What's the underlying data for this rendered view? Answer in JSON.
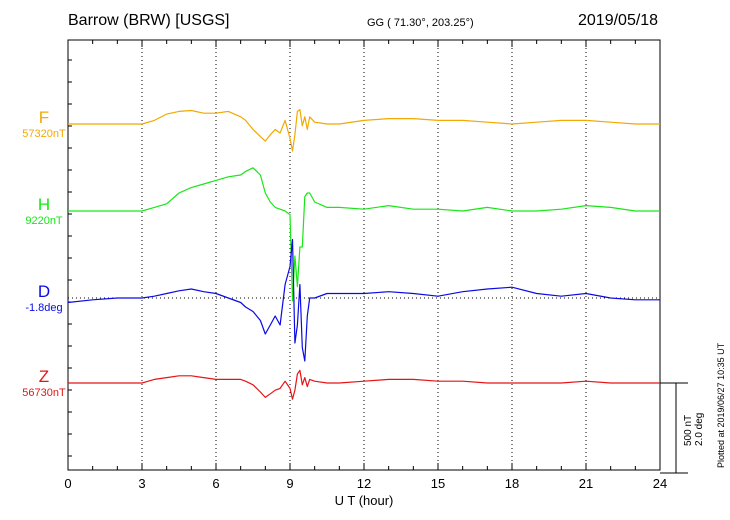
{
  "header": {
    "station": "Barrow (BRW)  [USGS]",
    "coords": "GG ( 71.30°, 203.25°)",
    "date": "2019/05/18"
  },
  "side_note": "Plotted at 2019/06/27 10:35 UT",
  "scale_bar": {
    "line1": "500 nT",
    "line2": "2.0 deg"
  },
  "colors": {
    "F": "#f2a900",
    "H": "#19e619",
    "D": "#0a0ae6",
    "Z": "#e61414",
    "axis": "#000000"
  },
  "chart_data": {
    "type": "line",
    "title": "Barrow (BRW)  [USGS]",
    "xlabel": "U T (hour)",
    "xlim": [
      0,
      24
    ],
    "xticks": [
      "0",
      "3",
      "6",
      "9",
      "12",
      "15",
      "18",
      "21",
      "24"
    ],
    "scale": {
      "nT_per_bar": 500,
      "deg_per_bar": 2.0
    },
    "grid": true,
    "series": [
      {
        "name": "F",
        "baseline_label": "57320nT",
        "unit": "nT",
        "x": [
          0,
          1,
          2,
          3,
          3.5,
          4,
          4.5,
          5,
          5.5,
          6,
          6.5,
          7,
          7.2,
          7.5,
          7.8,
          8,
          8.2,
          8.4,
          8.6,
          8.8,
          9,
          9.1,
          9.2,
          9.3,
          9.4,
          9.5,
          9.6,
          9.7,
          9.8,
          10,
          10.5,
          11,
          12,
          13,
          14,
          15,
          16,
          17,
          18,
          19,
          20,
          21,
          22,
          23,
          24
        ],
        "values": [
          0,
          0,
          0,
          0,
          20,
          55,
          70,
          75,
          60,
          60,
          70,
          40,
          20,
          -30,
          -70,
          -95,
          -60,
          -30,
          -50,
          20,
          -80,
          -150,
          -60,
          70,
          80,
          -10,
          40,
          -30,
          40,
          10,
          0,
          0,
          20,
          30,
          30,
          20,
          20,
          10,
          0,
          10,
          20,
          20,
          10,
          0,
          0
        ]
      },
      {
        "name": "H",
        "baseline_label": "9220nT",
        "unit": "nT",
        "x": [
          0,
          1,
          2,
          3,
          3.5,
          4,
          4.5,
          5,
          5.5,
          6,
          6.5,
          7,
          7.2,
          7.5,
          7.8,
          8,
          8.2,
          8.4,
          8.6,
          8.8,
          9,
          9.1,
          9.2,
          9.3,
          9.4,
          9.5,
          9.6,
          9.7,
          9.8,
          10,
          10.5,
          11,
          12,
          13,
          14,
          15,
          16,
          17,
          18,
          19,
          20,
          21,
          22,
          23,
          24
        ],
        "values": [
          0,
          0,
          0,
          0,
          20,
          40,
          100,
          130,
          150,
          170,
          190,
          200,
          220,
          240,
          200,
          100,
          50,
          20,
          10,
          0,
          -20,
          -500,
          -250,
          -420,
          -200,
          -200,
          80,
          100,
          100,
          50,
          20,
          20,
          10,
          30,
          10,
          10,
          0,
          20,
          0,
          0,
          10,
          30,
          20,
          0,
          0
        ]
      },
      {
        "name": "D",
        "baseline_label": "-1.8deg",
        "unit": "deg",
        "x": [
          0,
          1,
          2,
          3,
          3.5,
          4,
          4.5,
          5,
          5.5,
          6,
          6.5,
          7,
          7.2,
          7.5,
          7.8,
          8,
          8.2,
          8.4,
          8.6,
          8.8,
          9,
          9.1,
          9.2,
          9.3,
          9.4,
          9.5,
          9.6,
          9.7,
          9.8,
          10,
          10.5,
          11,
          12,
          13,
          14,
          15,
          16,
          17,
          18,
          19,
          20,
          21,
          22,
          23,
          24
        ],
        "values": [
          -0.1,
          -0.04,
          0.0,
          0.0,
          0.04,
          0.1,
          0.16,
          0.2,
          0.14,
          0.1,
          0.0,
          -0.1,
          -0.2,
          -0.3,
          -0.5,
          -0.8,
          -0.6,
          -0.4,
          -0.6,
          0.3,
          0.7,
          1.3,
          -1.0,
          -0.6,
          0.3,
          -1.1,
          -1.4,
          -0.4,
          0.0,
          0.0,
          0.1,
          0.1,
          0.1,
          0.14,
          0.1,
          0.04,
          0.14,
          0.2,
          0.24,
          0.1,
          0.04,
          0.1,
          0.0,
          -0.04,
          -0.04
        ]
      },
      {
        "name": "Z",
        "baseline_label": "56730nT",
        "unit": "nT",
        "x": [
          0,
          1,
          2,
          3,
          3.5,
          4,
          4.5,
          5,
          5.5,
          6,
          6.5,
          7,
          7.2,
          7.5,
          7.8,
          8,
          8.2,
          8.4,
          8.6,
          8.8,
          9,
          9.1,
          9.2,
          9.3,
          9.4,
          9.5,
          9.6,
          9.7,
          9.8,
          10,
          10.5,
          11,
          12,
          13,
          14,
          15,
          16,
          17,
          18,
          19,
          20,
          21,
          22,
          23,
          24
        ],
        "values": [
          0,
          0,
          0,
          0,
          20,
          30,
          40,
          40,
          30,
          20,
          20,
          20,
          10,
          -10,
          -50,
          -80,
          -60,
          -40,
          -30,
          10,
          -30,
          -90,
          -40,
          50,
          70,
          -10,
          30,
          -20,
          20,
          10,
          0,
          0,
          10,
          20,
          20,
          10,
          10,
          0,
          0,
          0,
          0,
          10,
          0,
          0,
          0
        ]
      }
    ]
  }
}
